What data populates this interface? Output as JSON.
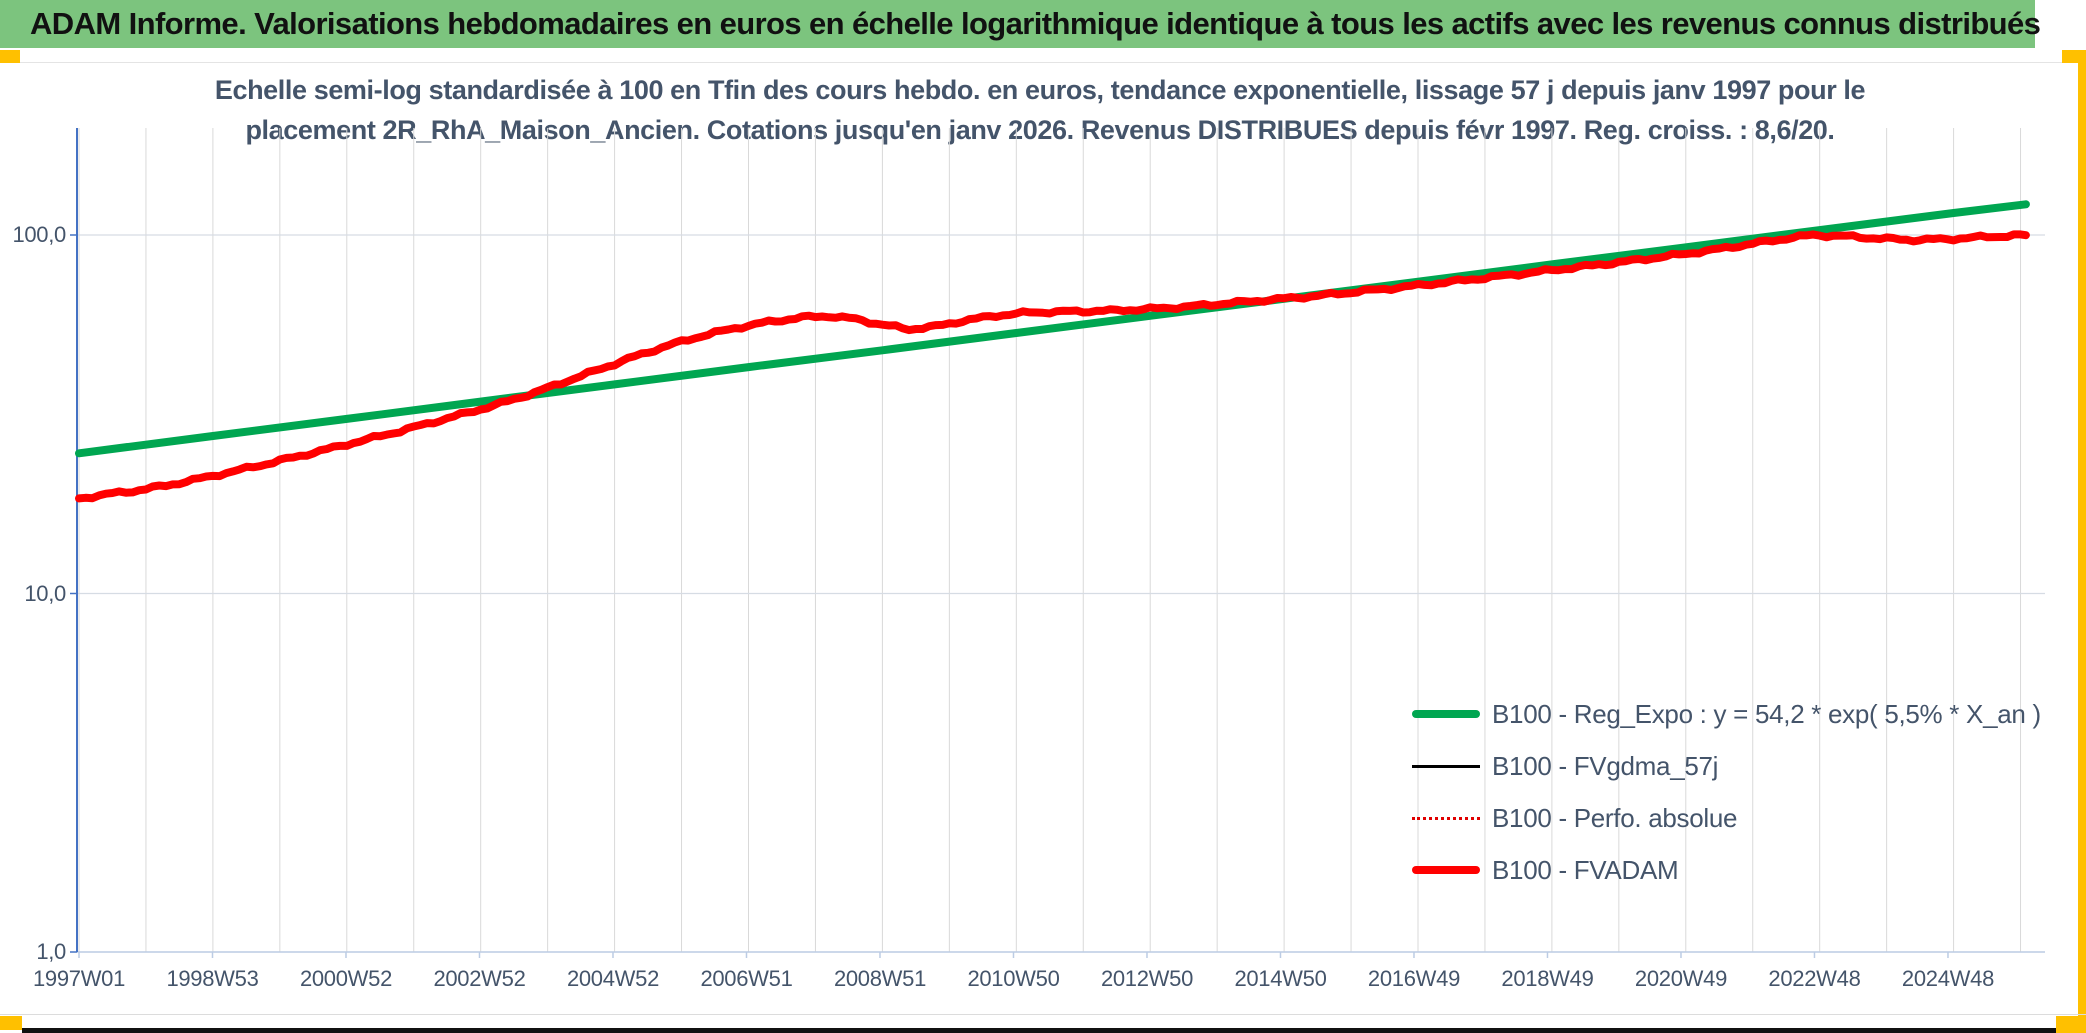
{
  "header": {
    "title": "ADAM Informe. Valorisations hebdomadaires en euros en échelle logarithmique identique à tous les actifs avec les revenus connus distribués",
    "bg_color": "#7CC47E",
    "accent_color": "#FFC000"
  },
  "chart": {
    "title_line1": "Echelle semi-log standardisée à 100 en Tfin des cours hebdo. en euros, tendance exponentielle, lissage 57 j depuis janv 1997 pour le",
    "title_line2": "placement 2R_RhA_Maison_Ancien. Cotations jusqu'en janv 2026. Revenus DISTRIBUES depuis févr 1997. Reg. croiss. : 8,6/20.",
    "title_color": "#44546A"
  },
  "legend": [
    {
      "label": "B100 - Reg_Expo : y = 54,2 * exp( 5,5% *  X_an )",
      "color": "#00A651",
      "style": "solid-thick"
    },
    {
      "label": "B100 - FVgdma_57j",
      "color": "#000000",
      "style": "solid-thin"
    },
    {
      "label": "B100 - Perfo. absolue",
      "color": "#E00000",
      "style": "dotted"
    },
    {
      "label": "B100 - FVADAM",
      "color": "#FF0000",
      "style": "solid-thick"
    }
  ],
  "chart_data": {
    "type": "line",
    "x_axis": {
      "tick_labels": [
        "1997W01",
        "1998W53",
        "2000W52",
        "2002W52",
        "2004W52",
        "2006W51",
        "2008W51",
        "2010W50",
        "2012W50",
        "2014W50",
        "2016W49",
        "2018W49",
        "2020W49",
        "2022W48",
        "2024W48"
      ],
      "tick_spacing_years": 1.994,
      "start_year": 1997.0,
      "end_year": 2026.08,
      "grid": "yearly"
    },
    "y_axis": {
      "scale": "log",
      "tick_labels": [
        "100,0",
        "10,0",
        "1,0"
      ],
      "tick_values": [
        100,
        10,
        1
      ],
      "range": [
        1,
        200
      ]
    },
    "series": [
      {
        "name": "B100 - Reg_Expo : y = 54,2 * exp( 5,5% *  X_an )",
        "color": "#00A651",
        "width": 8,
        "dash": "",
        "wiggle": false,
        "points": [
          [
            1997.0,
            24.6
          ],
          [
            1999.0,
            27.5
          ],
          [
            2001.0,
            30.7
          ],
          [
            2003.0,
            34.3
          ],
          [
            2005.0,
            38.3
          ],
          [
            2007.0,
            42.8
          ],
          [
            2009.0,
            47.7
          ],
          [
            2011.0,
            53.3
          ],
          [
            2013.0,
            59.5
          ],
          [
            2015.0,
            66.4
          ],
          [
            2017.0,
            74.1
          ],
          [
            2019.0,
            82.8
          ],
          [
            2021.0,
            92.4
          ],
          [
            2023.0,
            103.2
          ],
          [
            2025.0,
            115.2
          ],
          [
            2026.08,
            121.8
          ]
        ]
      },
      {
        "name": "B100 - Perfo. absolue",
        "color": "#E00000",
        "width": 2.5,
        "dash": "2 6",
        "wiggle": true,
        "points": [
          [
            1997.0,
            18.4
          ],
          [
            1997.4,
            18.9
          ],
          [
            1997.8,
            19.3
          ],
          [
            1998.3,
            20.0
          ],
          [
            1998.8,
            20.9
          ],
          [
            1999.3,
            21.9
          ],
          [
            1999.8,
            23.0
          ],
          [
            2000.3,
            24.2
          ],
          [
            2000.8,
            25.5
          ],
          [
            2001.3,
            26.9
          ],
          [
            2001.8,
            28.4
          ],
          [
            2002.3,
            30.1
          ],
          [
            2002.8,
            31.9
          ],
          [
            2003.3,
            33.9
          ],
          [
            2003.8,
            36.3
          ],
          [
            2004.3,
            39.2
          ],
          [
            2004.8,
            42.4
          ],
          [
            2005.3,
            45.8
          ],
          [
            2005.8,
            49.2
          ],
          [
            2006.3,
            52.3
          ],
          [
            2006.8,
            55.0
          ],
          [
            2007.3,
            57.2
          ],
          [
            2007.8,
            58.9
          ],
          [
            2008.2,
            59.4
          ],
          [
            2008.6,
            58.3
          ],
          [
            2009.0,
            56.2
          ],
          [
            2009.4,
            54.6
          ],
          [
            2009.8,
            55.6
          ],
          [
            2010.2,
            57.6
          ],
          [
            2010.7,
            59.6
          ],
          [
            2011.2,
            60.8
          ],
          [
            2011.8,
            61.2
          ],
          [
            2012.4,
            61.5
          ],
          [
            2013.0,
            62.2
          ],
          [
            2013.6,
            63.2
          ],
          [
            2014.2,
            64.6
          ],
          [
            2014.8,
            66.0
          ],
          [
            2015.4,
            67.4
          ],
          [
            2016.0,
            69.2
          ],
          [
            2016.6,
            71.0
          ],
          [
            2017.2,
            73.0
          ],
          [
            2017.8,
            75.2
          ],
          [
            2018.4,
            77.4
          ],
          [
            2019.0,
            79.8
          ],
          [
            2019.6,
            82.2
          ],
          [
            2020.2,
            84.8
          ],
          [
            2020.8,
            87.6
          ],
          [
            2021.4,
            90.8
          ],
          [
            2022.0,
            94.6
          ],
          [
            2022.5,
            97.8
          ],
          [
            2022.9,
            100.0
          ],
          [
            2023.4,
            99.2
          ],
          [
            2023.9,
            97.8
          ],
          [
            2024.4,
            96.9
          ],
          [
            2024.9,
            97.4
          ],
          [
            2025.4,
            98.6
          ],
          [
            2025.9,
            99.6
          ],
          [
            2026.08,
            99.9
          ]
        ]
      },
      {
        "name": "B100 - FVgdma_57j",
        "color": "#000000",
        "width": 2.5,
        "dash": "",
        "wiggle": false,
        "points": [
          [
            1997.0,
            18.4
          ],
          [
            1997.4,
            18.9
          ],
          [
            1997.8,
            19.3
          ],
          [
            1998.3,
            20.0
          ],
          [
            1998.8,
            20.9
          ],
          [
            1999.3,
            21.9
          ],
          [
            1999.8,
            23.0
          ],
          [
            2000.3,
            24.2
          ],
          [
            2000.8,
            25.5
          ],
          [
            2001.3,
            26.9
          ],
          [
            2001.8,
            28.4
          ],
          [
            2002.3,
            30.1
          ],
          [
            2002.8,
            31.9
          ],
          [
            2003.3,
            33.9
          ],
          [
            2003.8,
            36.3
          ],
          [
            2004.3,
            39.2
          ],
          [
            2004.8,
            42.4
          ],
          [
            2005.3,
            45.8
          ],
          [
            2005.8,
            49.2
          ],
          [
            2006.3,
            52.3
          ],
          [
            2006.8,
            55.0
          ],
          [
            2007.3,
            57.2
          ],
          [
            2007.8,
            58.9
          ],
          [
            2008.2,
            59.4
          ],
          [
            2008.6,
            58.3
          ],
          [
            2009.0,
            56.2
          ],
          [
            2009.4,
            54.6
          ],
          [
            2009.8,
            55.6
          ],
          [
            2010.2,
            57.6
          ],
          [
            2010.7,
            59.6
          ],
          [
            2011.2,
            60.8
          ],
          [
            2011.8,
            61.2
          ],
          [
            2012.4,
            61.5
          ],
          [
            2013.0,
            62.2
          ],
          [
            2013.6,
            63.2
          ],
          [
            2014.2,
            64.6
          ],
          [
            2014.8,
            66.0
          ],
          [
            2015.4,
            67.4
          ],
          [
            2016.0,
            69.2
          ],
          [
            2016.6,
            71.0
          ],
          [
            2017.2,
            73.0
          ],
          [
            2017.8,
            75.2
          ],
          [
            2018.4,
            77.4
          ],
          [
            2019.0,
            79.8
          ],
          [
            2019.6,
            82.2
          ],
          [
            2020.2,
            84.8
          ],
          [
            2020.8,
            87.6
          ],
          [
            2021.4,
            90.8
          ],
          [
            2022.0,
            94.6
          ],
          [
            2022.5,
            97.8
          ],
          [
            2022.9,
            100.0
          ],
          [
            2023.4,
            99.2
          ],
          [
            2023.9,
            97.8
          ],
          [
            2024.4,
            96.9
          ],
          [
            2024.9,
            97.4
          ],
          [
            2025.4,
            98.6
          ],
          [
            2025.9,
            99.6
          ],
          [
            2026.08,
            99.9
          ]
        ]
      },
      {
        "name": "B100 - FVADAM",
        "color": "#FF0000",
        "width": 8,
        "dash": "",
        "wiggle": true,
        "points": [
          [
            1997.0,
            18.4
          ],
          [
            1997.4,
            18.9
          ],
          [
            1997.8,
            19.3
          ],
          [
            1998.3,
            20.0
          ],
          [
            1998.8,
            20.9
          ],
          [
            1999.3,
            21.9
          ],
          [
            1999.8,
            23.0
          ],
          [
            2000.3,
            24.2
          ],
          [
            2000.8,
            25.5
          ],
          [
            2001.3,
            26.9
          ],
          [
            2001.8,
            28.4
          ],
          [
            2002.3,
            30.1
          ],
          [
            2002.8,
            31.9
          ],
          [
            2003.3,
            33.9
          ],
          [
            2003.8,
            36.3
          ],
          [
            2004.3,
            39.2
          ],
          [
            2004.8,
            42.4
          ],
          [
            2005.3,
            45.8
          ],
          [
            2005.8,
            49.2
          ],
          [
            2006.3,
            52.3
          ],
          [
            2006.8,
            55.0
          ],
          [
            2007.3,
            57.2
          ],
          [
            2007.8,
            58.9
          ],
          [
            2008.2,
            59.4
          ],
          [
            2008.6,
            58.3
          ],
          [
            2009.0,
            56.2
          ],
          [
            2009.4,
            54.6
          ],
          [
            2009.8,
            55.6
          ],
          [
            2010.2,
            57.6
          ],
          [
            2010.7,
            59.6
          ],
          [
            2011.2,
            60.8
          ],
          [
            2011.8,
            61.2
          ],
          [
            2012.4,
            61.5
          ],
          [
            2013.0,
            62.2
          ],
          [
            2013.6,
            63.2
          ],
          [
            2014.2,
            64.6
          ],
          [
            2014.8,
            66.0
          ],
          [
            2015.4,
            67.4
          ],
          [
            2016.0,
            69.2
          ],
          [
            2016.6,
            71.0
          ],
          [
            2017.2,
            73.0
          ],
          [
            2017.8,
            75.2
          ],
          [
            2018.4,
            77.4
          ],
          [
            2019.0,
            79.8
          ],
          [
            2019.6,
            82.2
          ],
          [
            2020.2,
            84.8
          ],
          [
            2020.8,
            87.6
          ],
          [
            2021.4,
            90.8
          ],
          [
            2022.0,
            94.6
          ],
          [
            2022.5,
            97.8
          ],
          [
            2022.9,
            100.0
          ],
          [
            2023.4,
            99.2
          ],
          [
            2023.9,
            97.8
          ],
          [
            2024.4,
            96.9
          ],
          [
            2024.9,
            97.4
          ],
          [
            2025.4,
            98.6
          ],
          [
            2025.9,
            99.6
          ],
          [
            2026.08,
            99.9
          ]
        ]
      }
    ],
    "title": "Echelle semi-log standardisée à 100 en Tfin des cours hebdo. en euros, tendance exponentielle, lissage 57 j depuis janv 1997 pour le placement 2R_RhA_Maison_Ancien. Cotations jusqu'en janv 2026. Revenus DISTRIBUES depuis févr 1997. Reg. croiss. : 8,6/20.",
    "legend_position": "inside-bottom-right",
    "note": "FVgdma_57j and Perfo. absolue coincide with FVADAM and are hidden beneath it"
  },
  "colors": {
    "grid_vertical": "#D9D9D9",
    "grid_horizontal": "#D6DCE4",
    "y_axis_line": "#4472C4",
    "x_axis_line": "#BCCCE4",
    "axis_text": "#44546A"
  }
}
